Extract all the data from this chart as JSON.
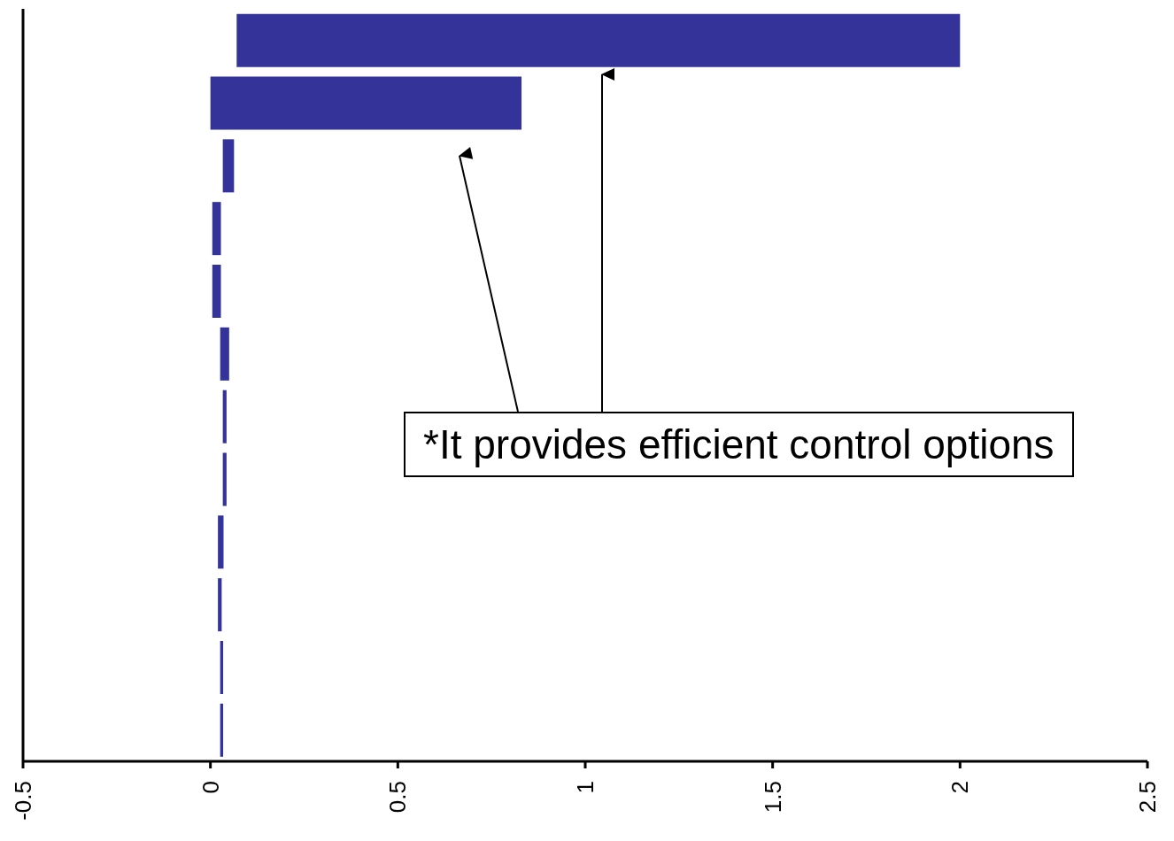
{
  "chart_data": {
    "type": "bar",
    "orientation": "horizontal",
    "categories": [
      null,
      null,
      null,
      null,
      null,
      null,
      null,
      null,
      null,
      null,
      null,
      null
    ],
    "base": [
      0.07,
      0.0,
      0.033,
      0.005,
      0.005,
      0.026,
      0.033,
      0.033,
      0.02,
      0.02,
      0.026,
      0.026
    ],
    "values": [
      1.93,
      0.83,
      0.03,
      0.023,
      0.023,
      0.024,
      0.01,
      0.01,
      0.015,
      0.01,
      0.008,
      0.008
    ],
    "color": "#333399",
    "xlim": [
      -0.5,
      2.5
    ],
    "xticks": [
      -0.5,
      0,
      0.5,
      1,
      1.5,
      2,
      2.5
    ],
    "tick_labels": "x",
    "annotations": [
      "*It provides efficient control options"
    ]
  }
}
